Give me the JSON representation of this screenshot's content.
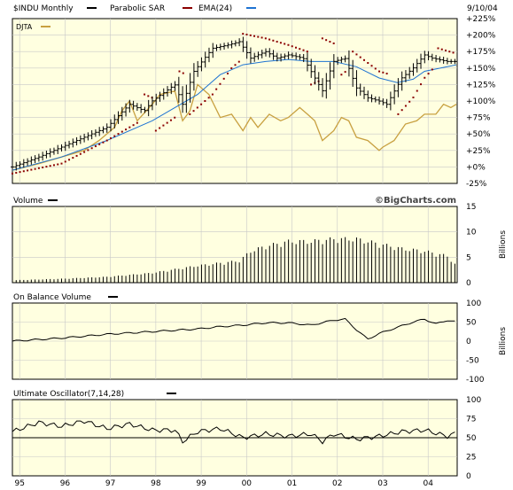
{
  "header": {
    "symbol": "$INDU Monthly",
    "sar_label": "Parabolic SAR",
    "ema_label": "EMA(24)",
    "date": "9/10/04",
    "compare_label": "DJTA"
  },
  "volume_panel": {
    "title": "Volume",
    "unit": "Billions",
    "watermark": "©BigCharts.com"
  },
  "obv_panel": {
    "title": "On Balance Volume",
    "unit": "Billions"
  },
  "uo_panel": {
    "title": "Ultimate Oscillator(7,14,28)"
  },
  "colors": {
    "background": "#ffffe0",
    "price_bars": "#000000",
    "sar": "#8b0000",
    "ema": "#1e73d2",
    "djta": "#c8a040",
    "grid": "#c8c8c8"
  },
  "chart_data": [
    {
      "type": "ohlc",
      "name": "price",
      "x_range": [
        1994.92,
        2004.72
      ],
      "x_ticks": [
        {
          "x": 1995.08,
          "label": "95"
        },
        {
          "x": 1996.08,
          "label": "96"
        },
        {
          "x": 1997.08,
          "label": "97"
        },
        {
          "x": 1998.08,
          "label": "98"
        },
        {
          "x": 1999.08,
          "label": "99"
        },
        {
          "x": 2000.08,
          "label": "00"
        },
        {
          "x": 2001.08,
          "label": "01"
        },
        {
          "x": 2002.08,
          "label": "02"
        },
        {
          "x": 2003.08,
          "label": "03"
        },
        {
          "x": 2004.08,
          "label": "04"
        }
      ],
      "ylim": [
        -25,
        225
      ],
      "y_ticks": [
        -25,
        0,
        25,
        50,
        75,
        100,
        125,
        150,
        175,
        200,
        225
      ],
      "y_tick_labels": [
        "-25%",
        "+0%",
        "+25%",
        "+50%",
        "+75%",
        "+100%",
        "+125%",
        "+150%",
        "+175%",
        "+200%",
        "+225%"
      ],
      "grid": true,
      "price_keypoints": [
        [
          1994.92,
          0
        ],
        [
          1995.5,
          15
        ],
        [
          1996.0,
          30
        ],
        [
          1996.5,
          45
        ],
        [
          1997.0,
          60
        ],
        [
          1997.5,
          95
        ],
        [
          1997.83,
          85
        ],
        [
          1998.0,
          100
        ],
        [
          1998.5,
          125
        ],
        [
          1998.67,
          95
        ],
        [
          1998.92,
          145
        ],
        [
          1999.33,
          180
        ],
        [
          1999.67,
          185
        ],
        [
          1999.92,
          190
        ],
        [
          2000.17,
          165
        ],
        [
          2000.5,
          175
        ],
        [
          2000.75,
          165
        ],
        [
          2001.0,
          170
        ],
        [
          2001.33,
          165
        ],
        [
          2001.67,
          125
        ],
        [
          2001.75,
          115
        ],
        [
          2002.0,
          160
        ],
        [
          2002.25,
          165
        ],
        [
          2002.5,
          120
        ],
        [
          2002.75,
          105
        ],
        [
          2003.0,
          100
        ],
        [
          2003.17,
          95
        ],
        [
          2003.5,
          135
        ],
        [
          2003.75,
          150
        ],
        [
          2004.0,
          170
        ],
        [
          2004.17,
          165
        ],
        [
          2004.5,
          160
        ],
        [
          2004.7,
          160
        ]
      ],
      "ema_keypoints": [
        [
          1994.92,
          -5
        ],
        [
          1996.0,
          15
        ],
        [
          1997.0,
          40
        ],
        [
          1998.0,
          70
        ],
        [
          1999.0,
          110
        ],
        [
          1999.5,
          140
        ],
        [
          2000.0,
          155
        ],
        [
          2000.5,
          160
        ],
        [
          2001.0,
          163
        ],
        [
          2001.5,
          160
        ],
        [
          2002.0,
          160
        ],
        [
          2002.5,
          152
        ],
        [
          2003.0,
          135
        ],
        [
          2003.4,
          128
        ],
        [
          2003.75,
          133
        ],
        [
          2004.0,
          145
        ],
        [
          2004.5,
          152
        ],
        [
          2004.7,
          155
        ]
      ],
      "sar_segments": [
        {
          "side": "below",
          "points": [
            [
              1994.92,
              -10
            ],
            [
              1996.0,
              5
            ],
            [
              1997.0,
              40
            ],
            [
              1997.75,
              70
            ]
          ]
        },
        {
          "side": "above",
          "points": [
            [
              1997.83,
              110
            ],
            [
              1998.0,
              105
            ]
          ]
        },
        {
          "side": "below",
          "points": [
            [
              1998.08,
              55
            ],
            [
              1998.5,
              75
            ]
          ]
        },
        {
          "side": "above",
          "points": [
            [
              1998.6,
              145
            ],
            [
              1998.75,
              140
            ]
          ]
        },
        {
          "side": "below",
          "points": [
            [
              1998.83,
              80
            ],
            [
              1999.33,
              110
            ],
            [
              1999.75,
              150
            ],
            [
              1999.92,
              160
            ]
          ]
        },
        {
          "side": "above",
          "points": [
            [
              2000.0,
              202
            ],
            [
              2000.5,
              195
            ],
            [
              2001.0,
              185
            ],
            [
              2001.42,
              175
            ]
          ]
        },
        {
          "side": "below",
          "points": [
            [
              2001.5,
              125
            ],
            [
              2001.67,
              130
            ]
          ]
        },
        {
          "side": "above",
          "points": [
            [
              2001.75,
              195
            ],
            [
              2002.08,
              185
            ]
          ]
        },
        {
          "side": "below",
          "points": [
            [
              2002.17,
              140
            ],
            [
              2002.33,
              148
            ]
          ]
        },
        {
          "side": "above",
          "points": [
            [
              2002.42,
              175
            ],
            [
              2003.0,
              145
            ],
            [
              2003.25,
              140
            ]
          ]
        },
        {
          "side": "below",
          "points": [
            [
              2003.42,
              80
            ],
            [
              2003.75,
              105
            ],
            [
              2004.0,
              135
            ],
            [
              2004.2,
              150
            ]
          ]
        },
        {
          "side": "above",
          "points": [
            [
              2004.3,
              180
            ],
            [
              2004.7,
              172
            ]
          ]
        }
      ],
      "djta_keypoints": [
        [
          1994.92,
          -5
        ],
        [
          1995.5,
          5
        ],
        [
          1996.0,
          15
        ],
        [
          1996.5,
          25
        ],
        [
          1996.83,
          40
        ],
        [
          1997.17,
          60
        ],
        [
          1997.33,
          85
        ],
        [
          1997.5,
          100
        ],
        [
          1997.67,
          70
        ],
        [
          1998.0,
          95
        ],
        [
          1998.17,
          110
        ],
        [
          1998.5,
          115
        ],
        [
          1998.67,
          70
        ],
        [
          1998.83,
          85
        ],
        [
          1999.0,
          125
        ],
        [
          1999.25,
          110
        ],
        [
          1999.5,
          75
        ],
        [
          1999.75,
          80
        ],
        [
          2000.0,
          55
        ],
        [
          2000.17,
          75
        ],
        [
          2000.33,
          60
        ],
        [
          2000.58,
          80
        ],
        [
          2000.83,
          70
        ],
        [
          2001.0,
          75
        ],
        [
          2001.25,
          90
        ],
        [
          2001.42,
          80
        ],
        [
          2001.58,
          70
        ],
        [
          2001.75,
          40
        ],
        [
          2002.0,
          55
        ],
        [
          2002.17,
          75
        ],
        [
          2002.33,
          70
        ],
        [
          2002.5,
          45
        ],
        [
          2002.75,
          40
        ],
        [
          2003.0,
          25
        ],
        [
          2003.08,
          30
        ],
        [
          2003.33,
          40
        ],
        [
          2003.58,
          65
        ],
        [
          2003.83,
          70
        ],
        [
          2004.0,
          80
        ],
        [
          2004.25,
          80
        ],
        [
          2004.42,
          95
        ],
        [
          2004.58,
          90
        ],
        [
          2004.7,
          95
        ]
      ]
    },
    {
      "type": "bar",
      "name": "volume",
      "ylim": [
        0,
        15
      ],
      "y_ticks": [
        0,
        5,
        10,
        15
      ],
      "ylabel": "Billions",
      "monthly_step": 0.0833,
      "keypoints": [
        [
          1994.92,
          0.5
        ],
        [
          1996.0,
          0.8
        ],
        [
          1997.0,
          1.2
        ],
        [
          1998.0,
          2.0
        ],
        [
          1999.0,
          3.5
        ],
        [
          1999.92,
          4.5
        ],
        [
          2000.17,
          6.5
        ],
        [
          2000.5,
          7.5
        ],
        [
          2001.0,
          8.5
        ],
        [
          2001.5,
          8.5
        ],
        [
          2002.0,
          9.0
        ],
        [
          2002.5,
          9.0
        ],
        [
          2003.0,
          8.0
        ],
        [
          2003.5,
          7.0
        ],
        [
          2004.0,
          6.5
        ],
        [
          2004.5,
          5.5
        ],
        [
          2004.7,
          3.5
        ]
      ]
    },
    {
      "type": "line",
      "name": "on_balance_volume",
      "ylim": [
        -100,
        100
      ],
      "y_ticks": [
        -100,
        -50,
        0,
        50,
        100
      ],
      "ylabel": "Billions",
      "keypoints": [
        [
          1994.92,
          0
        ],
        [
          1996.0,
          8
        ],
        [
          1997.0,
          18
        ],
        [
          1998.0,
          25
        ],
        [
          1999.0,
          32
        ],
        [
          1999.5,
          38
        ],
        [
          2000.0,
          42
        ],
        [
          2000.5,
          48
        ],
        [
          2001.0,
          48
        ],
        [
          2001.5,
          42
        ],
        [
          2002.0,
          55
        ],
        [
          2002.25,
          58
        ],
        [
          2002.5,
          30
        ],
        [
          2002.75,
          5
        ],
        [
          2003.0,
          20
        ],
        [
          2003.5,
          40
        ],
        [
          2003.75,
          50
        ],
        [
          2004.0,
          58
        ],
        [
          2004.25,
          45
        ],
        [
          2004.5,
          55
        ],
        [
          2004.7,
          50
        ]
      ]
    },
    {
      "type": "line",
      "name": "ultimate_oscillator",
      "ylim": [
        0,
        100
      ],
      "y_ticks": [
        0,
        25,
        50,
        75,
        100
      ],
      "reference_line": 50,
      "keypoints": [
        [
          1994.92,
          58
        ],
        [
          1995.5,
          70
        ],
        [
          1996.0,
          65
        ],
        [
          1996.5,
          72
        ],
        [
          1997.0,
          62
        ],
        [
          1997.5,
          68
        ],
        [
          1998.0,
          60
        ],
        [
          1998.5,
          60
        ],
        [
          1998.67,
          45
        ],
        [
          1999.0,
          58
        ],
        [
          1999.5,
          62
        ],
        [
          2000.0,
          50
        ],
        [
          2000.5,
          55
        ],
        [
          2001.0,
          52
        ],
        [
          2001.5,
          55
        ],
        [
          2001.75,
          45
        ],
        [
          2002.0,
          55
        ],
        [
          2002.5,
          48
        ],
        [
          2002.75,
          50
        ],
        [
          2003.0,
          52
        ],
        [
          2003.5,
          58
        ],
        [
          2004.0,
          60
        ],
        [
          2004.5,
          52
        ],
        [
          2004.7,
          56
        ]
      ]
    }
  ]
}
